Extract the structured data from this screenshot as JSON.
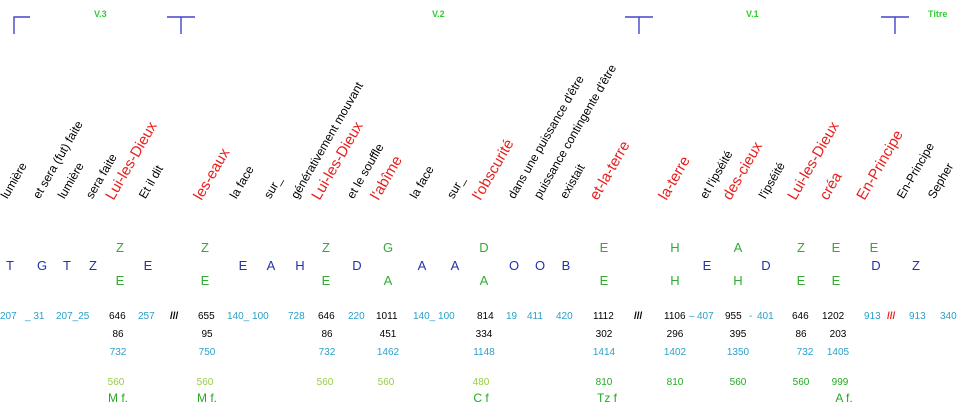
{
  "headers": {
    "v3": "V.3",
    "v2": "V.2",
    "v1": "V.1",
    "titre": "Titre"
  },
  "words": [
    {
      "text": "lumière",
      "red": false
    },
    {
      "text": "et sera (fut) faite",
      "red": false
    },
    {
      "text": "lumière",
      "red": false
    },
    {
      "text": "sera faite",
      "red": false
    },
    {
      "text": "Lui-les-Dieux",
      "red": true
    },
    {
      "text": "Et il dit",
      "red": false
    },
    {
      "text": "les-eaux",
      "red": true
    },
    {
      "text": "la face",
      "red": false
    },
    {
      "text": "sur_",
      "red": false
    },
    {
      "text": "générativement mouvant",
      "red": false
    },
    {
      "text": "Lui-les-Dieux",
      "red": true
    },
    {
      "text": "et le souffle",
      "red": false
    },
    {
      "text": "l'abîme",
      "red": true
    },
    {
      "text": "la face",
      "red": false
    },
    {
      "text": "sur_",
      "red": false
    },
    {
      "text": "l'obscurité",
      "red": true
    },
    {
      "text": "dans une puissance d'être",
      "red": false
    },
    {
      "text": "puissance contingente d'être",
      "red": false
    },
    {
      "text": "existait",
      "red": false
    },
    {
      "text": "et-la-terre",
      "red": true
    },
    {
      "text": "la-terre",
      "red": true
    },
    {
      "text": "et l'ipséité",
      "red": false
    },
    {
      "text": "des-cieux",
      "red": true
    },
    {
      "text": "l'ipséité",
      "red": false
    },
    {
      "text": "Lui-les-Dieux",
      "red": true
    },
    {
      "text": "créa",
      "red": true
    },
    {
      "text": "En-Principe",
      "red": true
    },
    {
      "text": "En-Principe",
      "red": false
    },
    {
      "text": "Sepher",
      "red": false
    }
  ],
  "green_letters_top": [
    "Z",
    "Z",
    "Z",
    "G",
    "D",
    "E",
    "H",
    "A",
    "Z",
    "E",
    "E"
  ],
  "blue_row": [
    "T",
    "G",
    "T",
    "Z",
    "E",
    "E",
    "A",
    "H",
    "D",
    "A",
    "A",
    "O",
    "O",
    "B",
    "E",
    "D",
    "D",
    "Z"
  ],
  "green_letters_mid": [
    "E",
    "E",
    "E",
    "A",
    "A",
    "E",
    "H",
    "H",
    "E",
    "E"
  ],
  "cyan_row": [
    "207",
    "_ 31",
    "207_25",
    "257",
    "140_ 100",
    "728",
    "220",
    "140_ 100",
    "19",
    "411",
    "420",
    "407",
    "401",
    "913",
    "913",
    "340"
  ],
  "black_row1": [
    "646",
    "655",
    "646",
    "1011",
    "814",
    "1112",
    "1106",
    "955",
    "646",
    "1202"
  ],
  "dashes": [
    "–",
    "-"
  ],
  "separators": [
    "///",
    "///"
  ],
  "red_separator": "///",
  "black_row2": [
    "86",
    "95",
    "86",
    "451",
    "334",
    "302",
    "296",
    "395",
    "86",
    "203"
  ],
  "cyan_row3": [
    "732",
    "750",
    "732",
    "1462",
    "1148",
    "1414",
    "1402",
    "1350",
    "732",
    "1405"
  ],
  "yg_row": [
    "560",
    "560",
    "560",
    "560",
    "480"
  ],
  "dg_nums": [
    "810",
    "810",
    "560",
    "560",
    "999"
  ],
  "bottom_labels": [
    "M f.",
    "M f.",
    "C f",
    "Tz f",
    "A f."
  ],
  "colors": {
    "red": "#e8201e",
    "blue": "#2233aa",
    "green": "#33aa33",
    "cyan": "#2aa0c8",
    "yellowgreen": "#99cc44"
  }
}
